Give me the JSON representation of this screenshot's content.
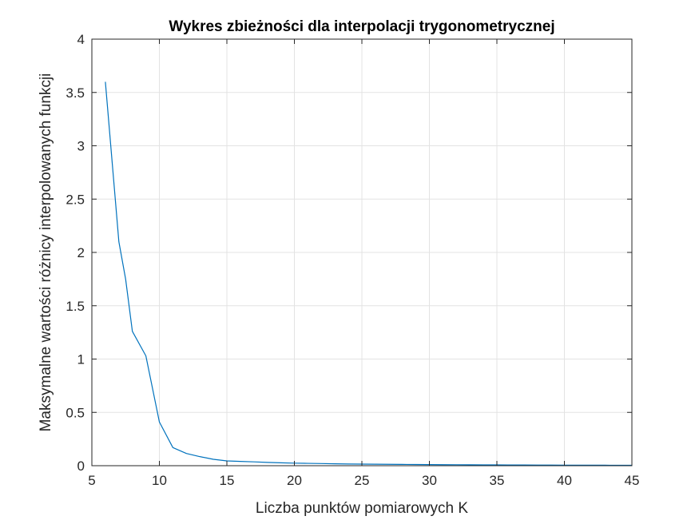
{
  "chart_data": {
    "type": "line",
    "title": "Wykres zbieżności dla interpolacji trygonometrycznej",
    "xlabel": "Liczba punktów pomiarowych K",
    "ylabel": "Maksymalne wartości różnicy interpolowanych funkcji",
    "xlim": [
      5,
      45
    ],
    "ylim": [
      0,
      4
    ],
    "xticks": [
      5,
      10,
      15,
      20,
      25,
      30,
      35,
      40,
      45
    ],
    "yticks": [
      0,
      0.5,
      1,
      1.5,
      2,
      2.5,
      3,
      3.5,
      4
    ],
    "xtick_labels": [
      "5",
      "10",
      "15",
      "20",
      "25",
      "30",
      "35",
      "40",
      "45"
    ],
    "ytick_labels": [
      "0",
      "0.5",
      "1",
      "1.5",
      "2",
      "2.5",
      "3",
      "3.5",
      "4"
    ],
    "grid": true,
    "line_color": "#0072BD",
    "series": [
      {
        "x": [
          6,
          7,
          7.5,
          8,
          9,
          10,
          11,
          12,
          13,
          14,
          15,
          16,
          17,
          18,
          19,
          20,
          21,
          22,
          23,
          24,
          25,
          26,
          27,
          28,
          29,
          30,
          31,
          32,
          33,
          34,
          35,
          36,
          37,
          38,
          39,
          40,
          41,
          42,
          43,
          44,
          45
        ],
        "y": [
          3.6,
          2.1,
          1.75,
          1.26,
          1.03,
          0.41,
          0.17,
          0.115,
          0.085,
          0.06,
          0.045,
          0.04,
          0.036,
          0.031,
          0.027,
          0.024,
          0.022,
          0.02,
          0.018,
          0.016,
          0.015,
          0.014,
          0.013,
          0.012,
          0.011,
          0.01,
          0.0095,
          0.009,
          0.0085,
          0.008,
          0.0075,
          0.007,
          0.0065,
          0.006,
          0.0055,
          0.005,
          0.0048,
          0.0046,
          0.0044,
          0.0042,
          0.004
        ]
      }
    ]
  }
}
